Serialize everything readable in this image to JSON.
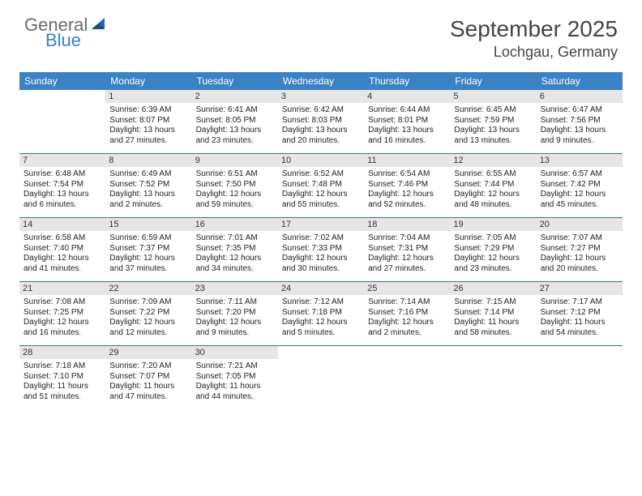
{
  "logo": {
    "word1": "General",
    "word2": "Blue",
    "word1_color": "#6a6a6a",
    "word2_color": "#3b7fc4",
    "sail_color": "#2563a8"
  },
  "title": {
    "month": "September 2025",
    "location": "Lochgau, Germany",
    "month_fontsize": 28,
    "location_fontsize": 18,
    "color": "#444444"
  },
  "colors": {
    "header_bg": "#3b82c4",
    "header_text": "#ffffff",
    "daynum_bg": "#e6e6e6",
    "week_border": "#3b6fa0",
    "body_text": "#222222",
    "background": "#ffffff"
  },
  "day_headers": [
    "Sunday",
    "Monday",
    "Tuesday",
    "Wednesday",
    "Thursday",
    "Friday",
    "Saturday"
  ],
  "weeks": [
    [
      {
        "blank": true
      },
      {
        "n": "1",
        "sunrise": "Sunrise: 6:39 AM",
        "sunset": "Sunset: 8:07 PM",
        "d1": "Daylight: 13 hours",
        "d2": "and 27 minutes."
      },
      {
        "n": "2",
        "sunrise": "Sunrise: 6:41 AM",
        "sunset": "Sunset: 8:05 PM",
        "d1": "Daylight: 13 hours",
        "d2": "and 23 minutes."
      },
      {
        "n": "3",
        "sunrise": "Sunrise: 6:42 AM",
        "sunset": "Sunset: 8:03 PM",
        "d1": "Daylight: 13 hours",
        "d2": "and 20 minutes."
      },
      {
        "n": "4",
        "sunrise": "Sunrise: 6:44 AM",
        "sunset": "Sunset: 8:01 PM",
        "d1": "Daylight: 13 hours",
        "d2": "and 16 minutes."
      },
      {
        "n": "5",
        "sunrise": "Sunrise: 6:45 AM",
        "sunset": "Sunset: 7:59 PM",
        "d1": "Daylight: 13 hours",
        "d2": "and 13 minutes."
      },
      {
        "n": "6",
        "sunrise": "Sunrise: 6:47 AM",
        "sunset": "Sunset: 7:56 PM",
        "d1": "Daylight: 13 hours",
        "d2": "and 9 minutes."
      }
    ],
    [
      {
        "n": "7",
        "sunrise": "Sunrise: 6:48 AM",
        "sunset": "Sunset: 7:54 PM",
        "d1": "Daylight: 13 hours",
        "d2": "and 6 minutes."
      },
      {
        "n": "8",
        "sunrise": "Sunrise: 6:49 AM",
        "sunset": "Sunset: 7:52 PM",
        "d1": "Daylight: 13 hours",
        "d2": "and 2 minutes."
      },
      {
        "n": "9",
        "sunrise": "Sunrise: 6:51 AM",
        "sunset": "Sunset: 7:50 PM",
        "d1": "Daylight: 12 hours",
        "d2": "and 59 minutes."
      },
      {
        "n": "10",
        "sunrise": "Sunrise: 6:52 AM",
        "sunset": "Sunset: 7:48 PM",
        "d1": "Daylight: 12 hours",
        "d2": "and 55 minutes."
      },
      {
        "n": "11",
        "sunrise": "Sunrise: 6:54 AM",
        "sunset": "Sunset: 7:46 PM",
        "d1": "Daylight: 12 hours",
        "d2": "and 52 minutes."
      },
      {
        "n": "12",
        "sunrise": "Sunrise: 6:55 AM",
        "sunset": "Sunset: 7:44 PM",
        "d1": "Daylight: 12 hours",
        "d2": "and 48 minutes."
      },
      {
        "n": "13",
        "sunrise": "Sunrise: 6:57 AM",
        "sunset": "Sunset: 7:42 PM",
        "d1": "Daylight: 12 hours",
        "d2": "and 45 minutes."
      }
    ],
    [
      {
        "n": "14",
        "sunrise": "Sunrise: 6:58 AM",
        "sunset": "Sunset: 7:40 PM",
        "d1": "Daylight: 12 hours",
        "d2": "and 41 minutes."
      },
      {
        "n": "15",
        "sunrise": "Sunrise: 6:59 AM",
        "sunset": "Sunset: 7:37 PM",
        "d1": "Daylight: 12 hours",
        "d2": "and 37 minutes."
      },
      {
        "n": "16",
        "sunrise": "Sunrise: 7:01 AM",
        "sunset": "Sunset: 7:35 PM",
        "d1": "Daylight: 12 hours",
        "d2": "and 34 minutes."
      },
      {
        "n": "17",
        "sunrise": "Sunrise: 7:02 AM",
        "sunset": "Sunset: 7:33 PM",
        "d1": "Daylight: 12 hours",
        "d2": "and 30 minutes."
      },
      {
        "n": "18",
        "sunrise": "Sunrise: 7:04 AM",
        "sunset": "Sunset: 7:31 PM",
        "d1": "Daylight: 12 hours",
        "d2": "and 27 minutes."
      },
      {
        "n": "19",
        "sunrise": "Sunrise: 7:05 AM",
        "sunset": "Sunset: 7:29 PM",
        "d1": "Daylight: 12 hours",
        "d2": "and 23 minutes."
      },
      {
        "n": "20",
        "sunrise": "Sunrise: 7:07 AM",
        "sunset": "Sunset: 7:27 PM",
        "d1": "Daylight: 12 hours",
        "d2": "and 20 minutes."
      }
    ],
    [
      {
        "n": "21",
        "sunrise": "Sunrise: 7:08 AM",
        "sunset": "Sunset: 7:25 PM",
        "d1": "Daylight: 12 hours",
        "d2": "and 16 minutes."
      },
      {
        "n": "22",
        "sunrise": "Sunrise: 7:09 AM",
        "sunset": "Sunset: 7:22 PM",
        "d1": "Daylight: 12 hours",
        "d2": "and 12 minutes."
      },
      {
        "n": "23",
        "sunrise": "Sunrise: 7:11 AM",
        "sunset": "Sunset: 7:20 PM",
        "d1": "Daylight: 12 hours",
        "d2": "and 9 minutes."
      },
      {
        "n": "24",
        "sunrise": "Sunrise: 7:12 AM",
        "sunset": "Sunset: 7:18 PM",
        "d1": "Daylight: 12 hours",
        "d2": "and 5 minutes."
      },
      {
        "n": "25",
        "sunrise": "Sunrise: 7:14 AM",
        "sunset": "Sunset: 7:16 PM",
        "d1": "Daylight: 12 hours",
        "d2": "and 2 minutes."
      },
      {
        "n": "26",
        "sunrise": "Sunrise: 7:15 AM",
        "sunset": "Sunset: 7:14 PM",
        "d1": "Daylight: 11 hours",
        "d2": "and 58 minutes."
      },
      {
        "n": "27",
        "sunrise": "Sunrise: 7:17 AM",
        "sunset": "Sunset: 7:12 PM",
        "d1": "Daylight: 11 hours",
        "d2": "and 54 minutes."
      }
    ],
    [
      {
        "n": "28",
        "sunrise": "Sunrise: 7:18 AM",
        "sunset": "Sunset: 7:10 PM",
        "d1": "Daylight: 11 hours",
        "d2": "and 51 minutes."
      },
      {
        "n": "29",
        "sunrise": "Sunrise: 7:20 AM",
        "sunset": "Sunset: 7:07 PM",
        "d1": "Daylight: 11 hours",
        "d2": "and 47 minutes."
      },
      {
        "n": "30",
        "sunrise": "Sunrise: 7:21 AM",
        "sunset": "Sunset: 7:05 PM",
        "d1": "Daylight: 11 hours",
        "d2": "and 44 minutes."
      },
      {
        "blank": true
      },
      {
        "blank": true
      },
      {
        "blank": true
      },
      {
        "blank": true
      }
    ]
  ]
}
